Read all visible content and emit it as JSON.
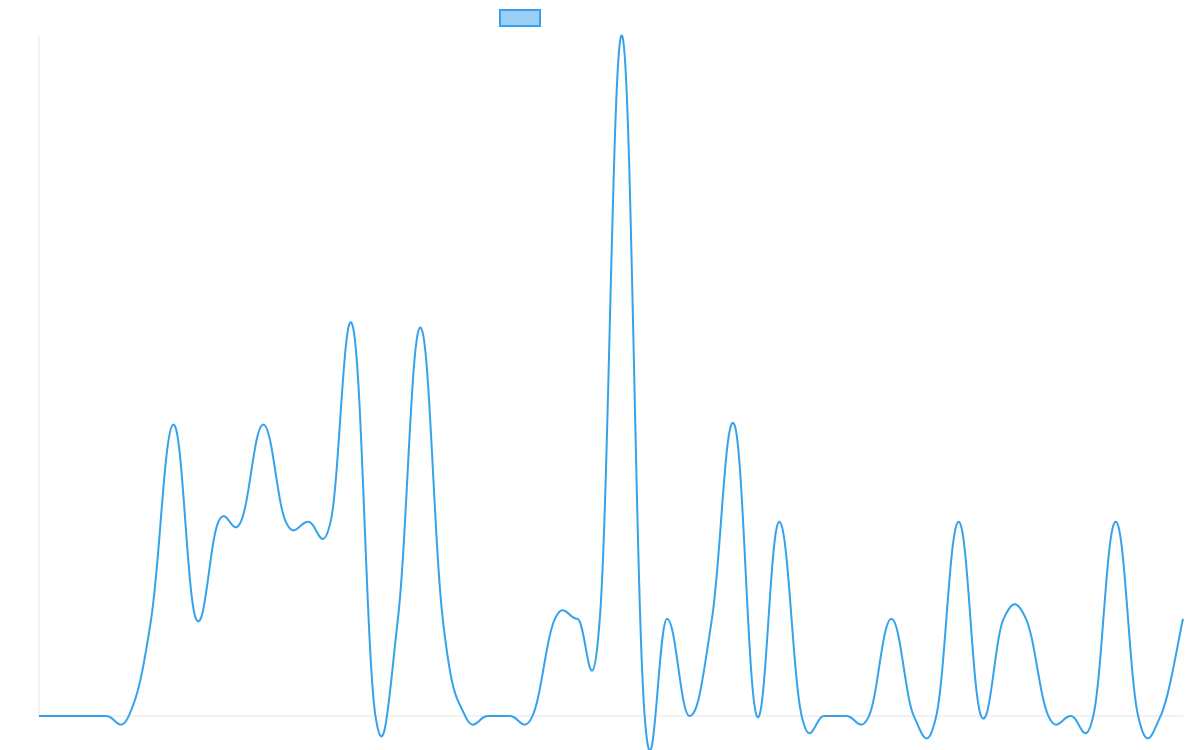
{
  "colors": {
    "line": "#36a2eb",
    "legend_fill": "#9ad0f5",
    "axis": "#e5e5e5"
  },
  "chart_data": {
    "type": "line",
    "title": "",
    "xlabel": "",
    "ylabel": "",
    "legend": {
      "position": "top",
      "entries": [
        {
          "name": ""
        }
      ]
    },
    "grid": false,
    "ylim": [
      0,
      7
    ],
    "x": [
      0,
      1,
      2,
      3,
      4,
      5,
      6,
      7,
      8,
      9,
      10,
      11,
      12,
      13,
      14,
      15,
      16,
      17,
      18,
      19,
      20,
      21,
      22,
      23,
      24,
      25,
      26,
      27,
      28,
      29,
      30,
      31,
      32,
      33,
      34,
      35,
      36,
      37,
      38,
      39,
      40,
      41,
      42,
      43,
      44,
      45,
      46,
      47,
      48,
      49,
      50,
      51
    ],
    "series": [
      {
        "name": "",
        "values": [
          0,
          0,
          0,
          0,
          0,
          1,
          3,
          1,
          2,
          2,
          3,
          2,
          2,
          2,
          4,
          0,
          1,
          4,
          1,
          0,
          0,
          0,
          0,
          1,
          1,
          1,
          7,
          0,
          1,
          0,
          1,
          3,
          0,
          2,
          0,
          0,
          0,
          0,
          1,
          0,
          0,
          2,
          0,
          1,
          1,
          0,
          0,
          0,
          2,
          0,
          0,
          1
        ]
      }
    ]
  }
}
